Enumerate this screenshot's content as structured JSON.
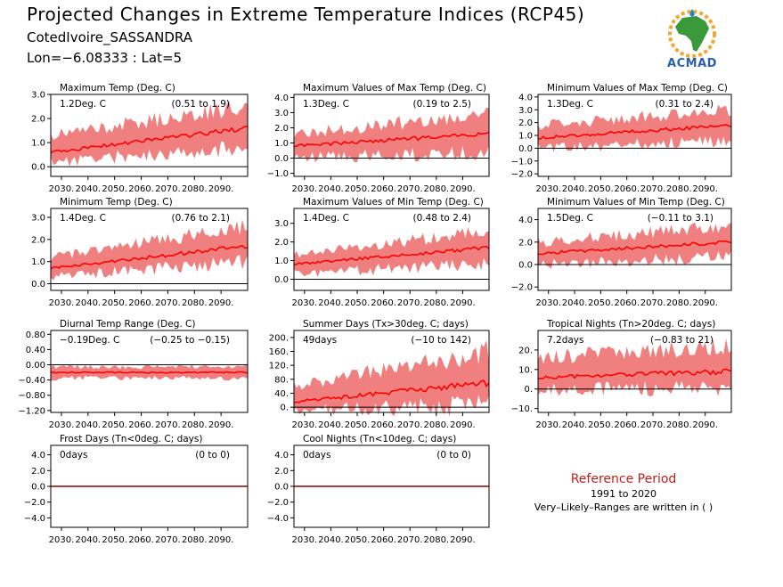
{
  "header": {
    "title": "Projected Changes in Extreme Temperature Indices (RCP45)",
    "location": "CotedIvoire_SASSANDRA",
    "lonlat": "Lon=−6.08333 : Lat=5"
  },
  "logo": {
    "text": "ACMAD",
    "icon": "africa-map-logo"
  },
  "reference": {
    "title": "Reference Period",
    "years": "1991 to 2020",
    "note": "Very–Likely–Ranges are written in ( )"
  },
  "colors": {
    "band": "#f08080",
    "line": "#ff0000",
    "zero": "#000000"
  },
  "chart_data": [
    {
      "type": "area",
      "title": "Maximum Temp (Deg. C)",
      "value_text": "1.2Deg. C",
      "range_text": "(0.51 to 1.9)",
      "ylim": [
        -0.4,
        3.0
      ],
      "yticks": [
        0.0,
        1.0,
        2.0,
        3.0
      ],
      "yticklabels": [
        "0.0",
        "1.0",
        "2.0",
        "3.0"
      ],
      "x": [
        2026,
        2100
      ],
      "xtick_labels": [
        "2030.",
        "2040.",
        "2050.",
        "2060.",
        "2070.",
        "2080.",
        "2090."
      ],
      "mean": {
        "start": 0.6,
        "end": 1.6
      },
      "lower": {
        "start": 0.2,
        "end": 0.8
      },
      "upper": {
        "start": 1.3,
        "end": 2.5
      }
    },
    {
      "type": "area",
      "title": "Maximum Values of Max Temp (Deg. C)",
      "value_text": "1.3Deg. C",
      "range_text": "(0.19 to 2.5)",
      "ylim": [
        -1.2,
        4.2
      ],
      "yticks": [
        -1.0,
        0.0,
        1.0,
        2.0,
        3.0,
        4.0
      ],
      "yticklabels": [
        "−1.0",
        "0.0",
        "1.0",
        "2.0",
        "3.0",
        "4.0"
      ],
      "x": [
        2026,
        2100
      ],
      "xtick_labels": [
        "2030.",
        "2040.",
        "2050.",
        "2060.",
        "2070.",
        "2080.",
        "2090."
      ],
      "mean": {
        "start": 0.8,
        "end": 1.6
      },
      "lower": {
        "start": 0.0,
        "end": 0.4
      },
      "upper": {
        "start": 1.6,
        "end": 2.9
      }
    },
    {
      "type": "area",
      "title": "Minimum Values of Max Temp (Deg. C)",
      "value_text": "1.3Deg. C",
      "range_text": "(0.31 to 2.4)",
      "ylim": [
        -2.2,
        4.2
      ],
      "yticks": [
        -2.0,
        -1.0,
        0.0,
        1.0,
        2.0,
        3.0,
        4.0
      ],
      "yticklabels": [
        "−2.0",
        "−1.0",
        "0.0",
        "1.0",
        "2.0",
        "3.0",
        "4.0"
      ],
      "x": [
        2026,
        2100
      ],
      "xtick_labels": [
        "2030.",
        "2040.",
        "2050.",
        "2060.",
        "2070.",
        "2080.",
        "2090."
      ],
      "mean": {
        "start": 0.8,
        "end": 1.8
      },
      "lower": {
        "start": 0.0,
        "end": 0.6
      },
      "upper": {
        "start": 1.8,
        "end": 3.0
      }
    },
    {
      "type": "area",
      "title": "Minimum Temp (Deg. C)",
      "value_text": "1.4Deg. C",
      "range_text": "(0.76 to 2.1)",
      "ylim": [
        -0.3,
        3.4
      ],
      "yticks": [
        0.0,
        1.0,
        2.0,
        3.0
      ],
      "yticklabels": [
        "0.0",
        "1.0",
        "2.0",
        "3.0"
      ],
      "x": [
        2026,
        2100
      ],
      "xtick_labels": [
        "2030.",
        "2040.",
        "2050.",
        "2060.",
        "2070.",
        "2080.",
        "2090."
      ],
      "mean": {
        "start": 0.7,
        "end": 1.7
      },
      "lower": {
        "start": 0.3,
        "end": 1.0
      },
      "upper": {
        "start": 1.2,
        "end": 2.6
      }
    },
    {
      "type": "area",
      "title": "Maximum Values of Min Temp (Deg. C)",
      "value_text": "1.4Deg. C",
      "range_text": "(0.48 to 2.4)",
      "ylim": [
        -0.6,
        3.8
      ],
      "yticks": [
        0.0,
        1.0,
        2.0,
        3.0
      ],
      "yticklabels": [
        "0.0",
        "1.0",
        "2.0",
        "3.0"
      ],
      "x": [
        2026,
        2100
      ],
      "xtick_labels": [
        "2030.",
        "2040.",
        "2050.",
        "2060.",
        "2070.",
        "2080.",
        "2090."
      ],
      "mean": {
        "start": 0.8,
        "end": 1.7
      },
      "lower": {
        "start": 0.3,
        "end": 0.8
      },
      "upper": {
        "start": 1.3,
        "end": 2.6
      }
    },
    {
      "type": "area",
      "title": "Minimum Values of Min Temp (Deg. C)",
      "value_text": "1.5Deg. C",
      "range_text": "(−0.11 to 3.1)",
      "ylim": [
        -2.3,
        5.0
      ],
      "yticks": [
        -2.0,
        0.0,
        2.0,
        4.0
      ],
      "yticklabels": [
        "−2.0",
        "0.0",
        "2.0",
        "4.0"
      ],
      "x": [
        2026,
        2100
      ],
      "xtick_labels": [
        "2030.",
        "2040.",
        "2050.",
        "2060.",
        "2070.",
        "2080.",
        "2090."
      ],
      "mean": {
        "start": 1.0,
        "end": 2.0
      },
      "lower": {
        "start": 0.0,
        "end": 0.7
      },
      "upper": {
        "start": 2.0,
        "end": 3.5
      }
    },
    {
      "type": "area",
      "title": "Diurnal Temp Range (Deg. C)",
      "value_text": "−0.19Deg. C",
      "range_text": "(−0.25 to −0.15)",
      "ylim": [
        -1.25,
        0.9
      ],
      "yticks": [
        -1.2,
        -0.8,
        -0.4,
        0.0,
        0.4,
        0.8
      ],
      "yticklabels": [
        "−1.20",
        "−0.80",
        "−0.40",
        "0.00",
        "0.40",
        "0.80"
      ],
      "x": [
        2026,
        2100
      ],
      "xtick_labels": [
        "2030.",
        "2040.",
        "2050.",
        "2060.",
        "2070.",
        "2080.",
        "2090."
      ],
      "mean": {
        "start": -0.2,
        "end": -0.2
      },
      "lower": {
        "start": -0.35,
        "end": -0.35
      },
      "upper": {
        "start": -0.05,
        "end": -0.05
      }
    },
    {
      "type": "area",
      "title": "Summer Days (Tx>30deg. C; days)",
      "value_text": "49days",
      "range_text": "(−10 to 142)",
      "ylim": [
        -15,
        220
      ],
      "yticks": [
        0,
        40,
        80,
        120,
        160,
        200
      ],
      "yticklabels": [
        "0.",
        "40.",
        "80.",
        "120.",
        "160.",
        "200."
      ],
      "x": [
        2026,
        2100
      ],
      "xtick_labels": [
        "2030.",
        "2040.",
        "2050.",
        "2060.",
        "2070.",
        "2080.",
        "2090."
      ],
      "mean": {
        "start": 15,
        "end": 70
      },
      "lower": {
        "start": -8,
        "end": 5
      },
      "upper": {
        "start": 60,
        "end": 160
      }
    },
    {
      "type": "area",
      "title": "Tropical Nights (Tn>20deg. C; days)",
      "value_text": "7.2days",
      "range_text": "(−0.83 to 21)",
      "ylim": [
        -12,
        30
      ],
      "yticks": [
        -10,
        0,
        10,
        20
      ],
      "yticklabels": [
        "−10.",
        "0.",
        "10.",
        "20."
      ],
      "x": [
        2026,
        2100
      ],
      "xtick_labels": [
        "2030.",
        "2040.",
        "2050.",
        "2060.",
        "2070.",
        "2080.",
        "2090."
      ],
      "mean": {
        "start": 6,
        "end": 9
      },
      "lower": {
        "start": 0,
        "end": 0
      },
      "upper": {
        "start": 16,
        "end": 22
      }
    },
    {
      "type": "area",
      "title": "Frost Days (Tn<0deg. C; days)",
      "value_text": "0days",
      "range_text": "(0 to 0)",
      "ylim": [
        -5.2,
        5.2
      ],
      "yticks": [
        -4.0,
        -2.0,
        0.0,
        2.0,
        4.0
      ],
      "yticklabels": [
        "−4.0",
        "−2.0",
        "0.0",
        "2.0",
        "4.0"
      ],
      "x": [
        2026,
        2100
      ],
      "xtick_labels": [
        "2030.",
        "2040.",
        "2050.",
        "2060.",
        "2070.",
        "2080.",
        "2090."
      ],
      "mean": {
        "start": 0,
        "end": 0
      },
      "lower": {
        "start": 0,
        "end": 0
      },
      "upper": {
        "start": 0,
        "end": 0
      }
    },
    {
      "type": "area",
      "title": "Cool Nights (Tn<10deg. C; days)",
      "value_text": "0days",
      "range_text": "(0 to 0)",
      "ylim": [
        -5.2,
        5.2
      ],
      "yticks": [
        -4.0,
        -2.0,
        0.0,
        2.0,
        4.0
      ],
      "yticklabels": [
        "−4.0",
        "−2.0",
        "0.0",
        "2.0",
        "4.0"
      ],
      "x": [
        2026,
        2100
      ],
      "xtick_labels": [
        "2030.",
        "2040.",
        "2050.",
        "2060.",
        "2070.",
        "2080.",
        "2090."
      ],
      "mean": {
        "start": 0,
        "end": 0
      },
      "lower": {
        "start": 0,
        "end": 0
      },
      "upper": {
        "start": 0,
        "end": 0
      }
    }
  ]
}
